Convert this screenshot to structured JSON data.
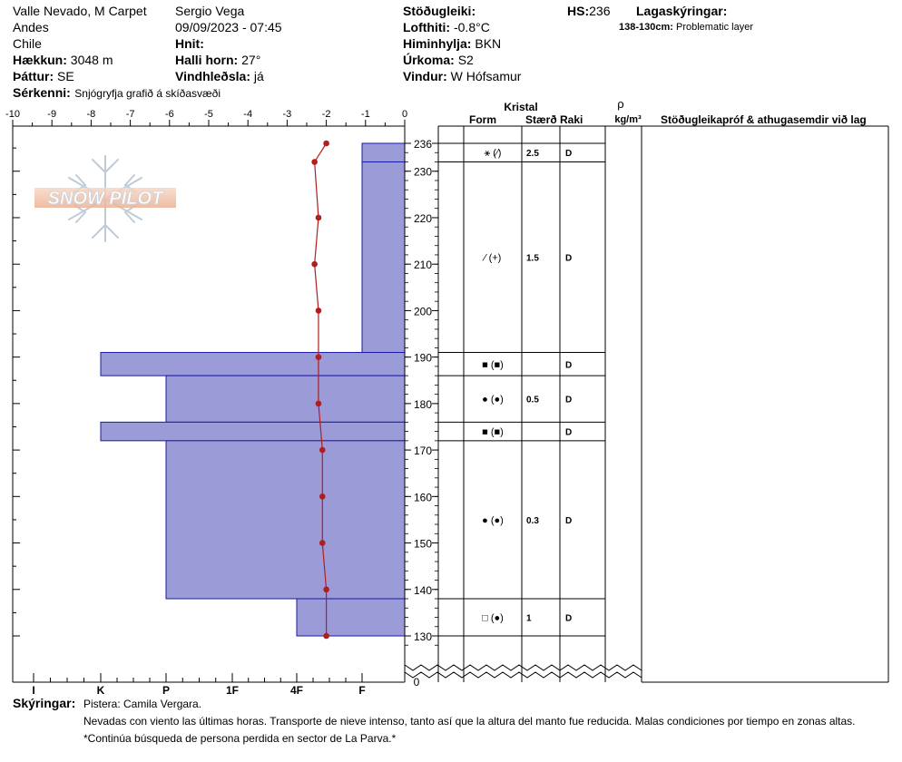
{
  "header": {
    "location": "Valle Nevado, M Carpet",
    "range": "Andes",
    "country": "Chile",
    "elevation_label": "Hækkun:",
    "elevation_value": "3048 m",
    "aspect_label": "Þáttur:",
    "aspect_value": "SE",
    "features_label": "Sérkenni:",
    "features_value": "Snjógryfja grafið á skíðasvæði",
    "observer": "Sergio Vega",
    "datetime": "09/09/2023 - 07:45",
    "coords_label": "Hnit:",
    "slope_label": "Halli horn:",
    "slope_value": "27°",
    "wind_loading_label": "Vindhleðsla:",
    "wind_loading_value": "já",
    "stability_label": "Stöðugleiki:",
    "air_temp_label": "Lofthiti:",
    "air_temp_value": "-0.8°C",
    "sky_label": "Himinhylja:",
    "sky_value": "BKN",
    "precip_label": "Úrkoma:",
    "precip_value": "S2",
    "wind_label": "Vindur:",
    "wind_value": "W Hófsamur",
    "hs_label": "HS:",
    "hs_value": "236",
    "layer_notes_label": "Lagaskýringar:",
    "layer_notes_range": "138-130cm:",
    "layer_notes_text": "Problematic layer"
  },
  "watermark": {
    "text": "SNOW PILOT"
  },
  "columns": {
    "kristal": "Kristal",
    "form": "Form",
    "size": "Stærð",
    "moisture": "Raki",
    "rho": "ρ",
    "density_unit": "kg/m³",
    "stability_col": "Stöðugleikapróf & athugasemdir við lag"
  },
  "footer": {
    "label": "Skýringar:",
    "line1": "Pistera: Camila Vergara.",
    "line2": "Nevadas con viento las últimas horas. Transporte de nieve intenso, tanto así que la altura del manto fue reducida. Malas condiciones por tiempo en zonas altas.",
    "line3": "*Continúa búsqueda de persona perdida en sector de La Parva.*"
  },
  "chart_data": {
    "type": "snow-profile",
    "temperature_axis": {
      "min": -10,
      "max": 0,
      "ticks": [
        -10,
        -9,
        -8,
        -7,
        -6,
        -5,
        -4,
        -3,
        -2,
        -1,
        0
      ]
    },
    "hardness_axis": {
      "ticks": [
        "I",
        "K",
        "P",
        "1F",
        "4F",
        "F"
      ]
    },
    "height_axis": {
      "min": 126,
      "max": 238,
      "ticks": [
        236,
        230,
        220,
        210,
        200,
        190,
        180,
        170,
        160,
        150,
        140,
        130
      ]
    },
    "zero_label": "0",
    "hardness_layers": [
      {
        "top": 236,
        "bottom": 232,
        "hardness": "F"
      },
      {
        "top": 232,
        "bottom": 191,
        "hardness": "F"
      },
      {
        "top": 191,
        "bottom": 186,
        "hardness": "K"
      },
      {
        "top": 186,
        "bottom": 176,
        "hardness": "P"
      },
      {
        "top": 176,
        "bottom": 172,
        "hardness": "K"
      },
      {
        "top": 172,
        "bottom": 138,
        "hardness": "P"
      },
      {
        "top": 138,
        "bottom": 130,
        "hardness": "4F"
      }
    ],
    "temperature_profile": [
      {
        "h": 236,
        "t": -2.0
      },
      {
        "h": 232,
        "t": -2.3
      },
      {
        "h": 220,
        "t": -2.2
      },
      {
        "h": 210,
        "t": -2.3
      },
      {
        "h": 200,
        "t": -2.2
      },
      {
        "h": 190,
        "t": -2.2
      },
      {
        "h": 180,
        "t": -2.2
      },
      {
        "h": 170,
        "t": -2.1
      },
      {
        "h": 160,
        "t": -2.1
      },
      {
        "h": 150,
        "t": -2.1
      },
      {
        "h": 140,
        "t": -2.0
      },
      {
        "h": 130,
        "t": -2.0
      }
    ],
    "layer_details": [
      {
        "top": 236,
        "bottom": 232,
        "form": "⚹ (⁄)",
        "size": "2.5",
        "moisture": "D"
      },
      {
        "top": 232,
        "bottom": 191,
        "form": "⁄ (+)",
        "size": "1.5",
        "moisture": "D"
      },
      {
        "top": 191,
        "bottom": 186,
        "form": "■ (■)",
        "size": "",
        "moisture": "D"
      },
      {
        "top": 186,
        "bottom": 176,
        "form": "● (●)",
        "size": "0.5",
        "moisture": "D"
      },
      {
        "top": 176,
        "bottom": 172,
        "form": "■ (■)",
        "size": "",
        "moisture": "D"
      },
      {
        "top": 172,
        "bottom": 138,
        "form": "● (●)",
        "size": "0.3",
        "moisture": "D"
      },
      {
        "top": 138,
        "bottom": 130,
        "form": "□ (●)",
        "size": "1",
        "moisture": "D"
      }
    ],
    "colors": {
      "hardness_fill": "#9b9bd8",
      "hardness_stroke": "#1a1aa6",
      "temperature": "#b01e1e"
    }
  }
}
